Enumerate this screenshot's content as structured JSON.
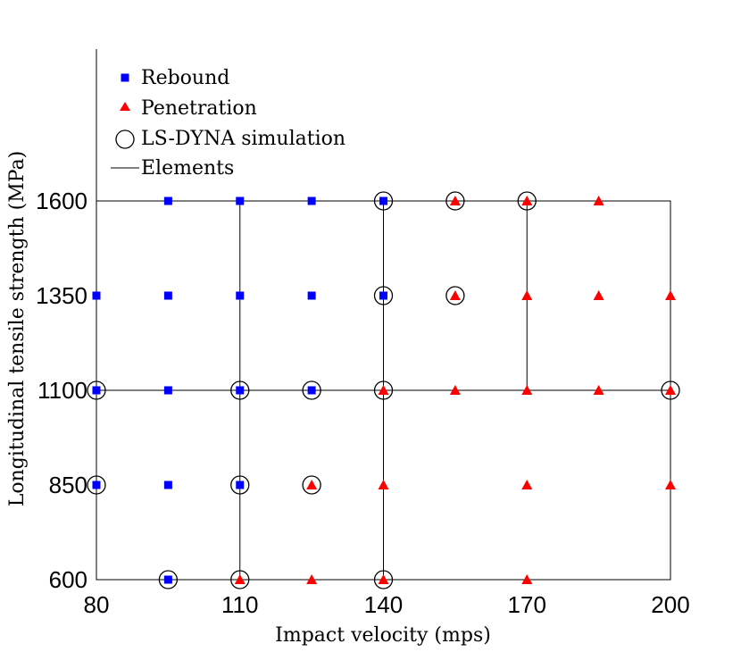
{
  "chart_data": {
    "type": "scatter",
    "xlabel": "Impact velocity (mps)",
    "ylabel": "Longitudinal tensile strength (MPa)",
    "xlim": [
      80,
      200
    ],
    "ylim": [
      600,
      1600
    ],
    "xticks": [
      80,
      110,
      140,
      170,
      200
    ],
    "yticks": [
      600,
      850,
      1100,
      1350,
      1600
    ],
    "grid": false,
    "legend_position": "top-left",
    "series": [
      {
        "name": "Rebound",
        "marker": "square",
        "color": "#0000ff",
        "points": [
          [
            95,
            1600
          ],
          [
            110,
            1600
          ],
          [
            125,
            1600
          ],
          [
            140,
            1600
          ],
          [
            80,
            1350
          ],
          [
            95,
            1350
          ],
          [
            110,
            1350
          ],
          [
            125,
            1350
          ],
          [
            140,
            1350
          ],
          [
            80,
            1100
          ],
          [
            95,
            1100
          ],
          [
            110,
            1100
          ],
          [
            125,
            1100
          ],
          [
            80,
            850
          ],
          [
            95,
            850
          ],
          [
            110,
            850
          ],
          [
            95,
            600
          ]
        ]
      },
      {
        "name": "Penetration",
        "marker": "triangle",
        "color": "#ff0000",
        "points": [
          [
            155,
            1600
          ],
          [
            170,
            1600
          ],
          [
            185,
            1600
          ],
          [
            155,
            1350
          ],
          [
            170,
            1350
          ],
          [
            185,
            1350
          ],
          [
            200,
            1350
          ],
          [
            140,
            1100
          ],
          [
            155,
            1100
          ],
          [
            170,
            1100
          ],
          [
            185,
            1100
          ],
          [
            200,
            1100
          ],
          [
            125,
            850
          ],
          [
            140,
            850
          ],
          [
            170,
            850
          ],
          [
            200,
            850
          ],
          [
            110,
            600
          ],
          [
            125,
            600
          ],
          [
            140,
            600
          ],
          [
            170,
            600
          ]
        ]
      },
      {
        "name": "LS-DYNA simulation",
        "marker": "circle-open",
        "color": "#000000",
        "points": [
          [
            140,
            1600
          ],
          [
            155,
            1600
          ],
          [
            170,
            1600
          ],
          [
            140,
            1350
          ],
          [
            155,
            1350
          ],
          [
            80,
            1100
          ],
          [
            110,
            1100
          ],
          [
            125,
            1100
          ],
          [
            140,
            1100
          ],
          [
            200,
            1100
          ],
          [
            80,
            850
          ],
          [
            110,
            850
          ],
          [
            125,
            850
          ],
          [
            95,
            600
          ],
          [
            110,
            600
          ],
          [
            140,
            600
          ]
        ]
      },
      {
        "name": "Elements",
        "marker": "line",
        "color": "#000000"
      }
    ],
    "element_boundaries": {
      "outer": {
        "x": [
          80,
          200
        ],
        "y": [
          600,
          1600
        ]
      },
      "horizontal": [
        1100
      ],
      "vertical_segments": [
        {
          "x": 110,
          "y": [
            600,
            1600
          ]
        },
        {
          "x": 140,
          "y": [
            600,
            1600
          ]
        },
        {
          "x": 170,
          "y": [
            1100,
            1600
          ]
        }
      ]
    }
  }
}
